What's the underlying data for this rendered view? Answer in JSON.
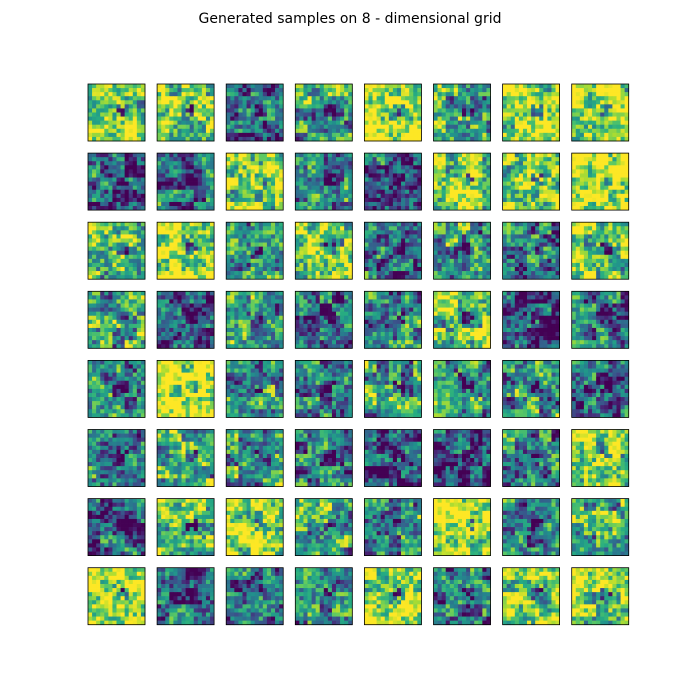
{
  "figure": {
    "title": "Generated samples on 8 - dimensional grid"
  },
  "chart_data": {
    "type": "heatmap",
    "title": "Generated samples on 8 - dimensional grid",
    "layout": "8x8 grid of generated image samples",
    "rows": 8,
    "cols": 8,
    "image_size": [
      14,
      14
    ],
    "colormap": "viridis",
    "value_range": [
      0,
      1
    ],
    "axes_ticks": false,
    "grid": false,
    "sample_mean_brightness": [
      [
        0.62,
        0.66,
        0.32,
        0.55,
        0.74,
        0.58,
        0.7,
        0.76
      ],
      [
        0.3,
        0.36,
        0.7,
        0.42,
        0.28,
        0.68,
        0.64,
        0.85
      ],
      [
        0.62,
        0.78,
        0.54,
        0.66,
        0.36,
        0.48,
        0.46,
        0.64
      ],
      [
        0.58,
        0.3,
        0.54,
        0.32,
        0.46,
        0.62,
        0.22,
        0.36
      ],
      [
        0.46,
        0.84,
        0.52,
        0.38,
        0.56,
        0.5,
        0.52,
        0.34
      ],
      [
        0.44,
        0.58,
        0.56,
        0.4,
        0.24,
        0.22,
        0.44,
        0.7
      ],
      [
        0.34,
        0.62,
        0.72,
        0.56,
        0.44,
        0.8,
        0.46,
        0.58
      ],
      [
        0.82,
        0.3,
        0.44,
        0.5,
        0.76,
        0.38,
        0.66,
        0.64
      ]
    ],
    "colors": {
      "viridis_low": "#440154",
      "viridis_mid": "#21918c",
      "viridis_high": "#fde725",
      "frame": "#000000"
    }
  }
}
